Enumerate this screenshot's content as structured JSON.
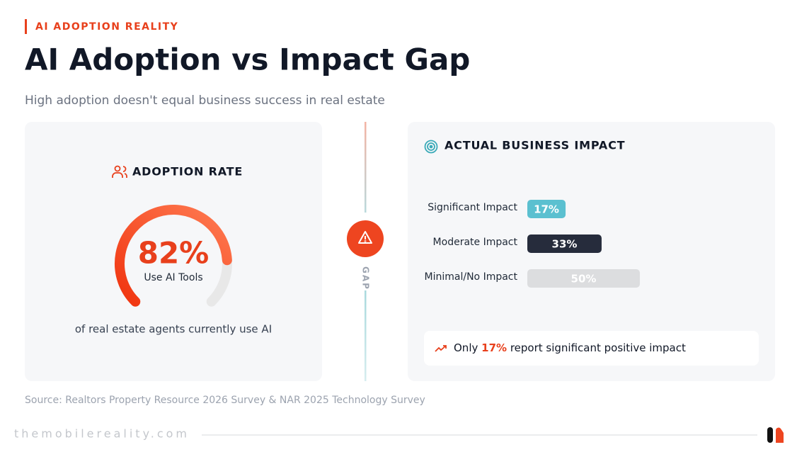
{
  "eyebrow": "AI ADOPTION REALITY",
  "title": "AI Adoption vs Impact Gap",
  "subtitle": "High adoption doesn't equal business success in real estate",
  "gap_label": "GAP",
  "chart_data": [
    {
      "type": "gauge",
      "title": "ADOPTION RATE",
      "values": [
        82
      ],
      "value_labels": [
        "82%"
      ],
      "caption": "Use AI Tools",
      "note": "of real estate agents currently use AI",
      "ylim": [
        0,
        100
      ]
    },
    {
      "type": "bar",
      "orientation": "horizontal",
      "title": "ACTUAL BUSINESS IMPACT",
      "categories": [
        "Significant Impact",
        "Moderate Impact",
        "Minimal/No Impact"
      ],
      "values": [
        17,
        33,
        50
      ],
      "value_labels": [
        "17%",
        "33%",
        "50%"
      ],
      "colors": [
        "#5bc0d0",
        "#262c3c",
        "#dcdddf"
      ],
      "xlim": [
        0,
        100
      ]
    }
  ],
  "callout": {
    "prefix": "Only",
    "highlight": "17%",
    "suffix": "report significant positive impact"
  },
  "source": "Source: Realtors Property Resource 2026 Survey & NAR 2025 Technology Survey",
  "footer": "themobilereality.com"
}
